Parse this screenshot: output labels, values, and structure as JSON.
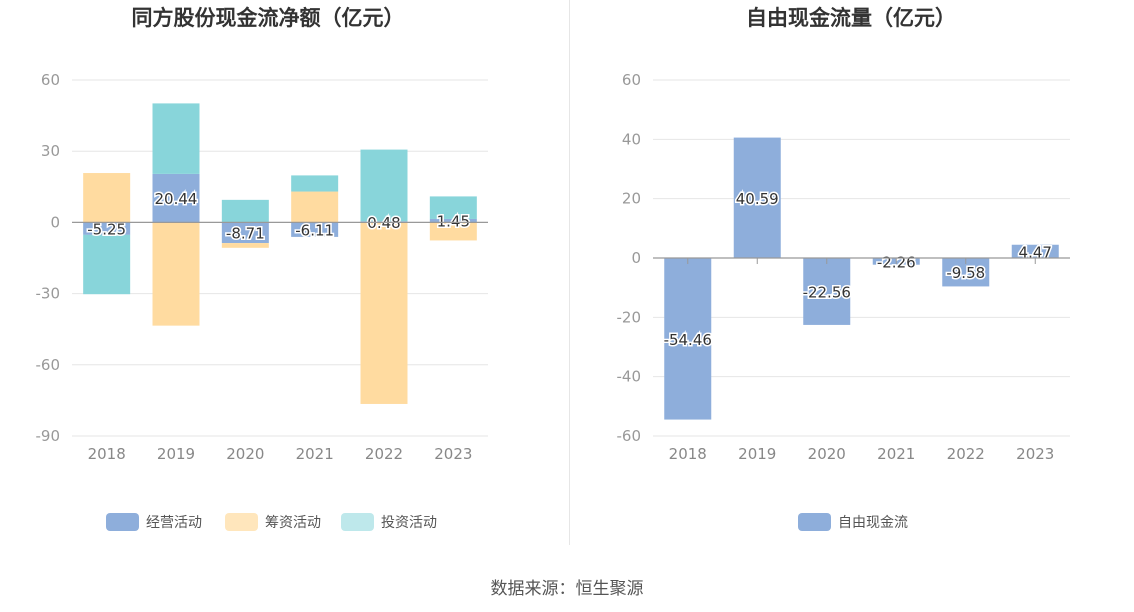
{
  "source": "数据来源：恒生聚源",
  "colors": {
    "operating": "#8eaedb",
    "financing": "#ffdba0",
    "investing": "#88d5da",
    "free": "#8eaedb",
    "grid": "#e6e6e6",
    "axis": "#999999"
  },
  "chart_data": [
    {
      "type": "bar",
      "stacked": true,
      "title": "同方股份现金流净额（亿元）",
      "categories": [
        "2018",
        "2019",
        "2020",
        "2021",
        "2022",
        "2023"
      ],
      "ylim": [
        -90,
        60
      ],
      "yticks": [
        60,
        30,
        0,
        -30,
        -60,
        -90
      ],
      "series": [
        {
          "name": "经营活动",
          "key": "operating",
          "values": [
            -5.25,
            20.44,
            -8.71,
            -6.11,
            0.48,
            1.45
          ],
          "labels": [
            "-5.25",
            "20.44",
            "-8.71",
            "-6.11",
            "0.48",
            "1.45"
          ]
        },
        {
          "name": "筹资活动",
          "key": "financing",
          "values": [
            20.8,
            -43.5,
            -2.0,
            13.0,
            -76.5,
            -7.6
          ]
        },
        {
          "name": "投资活动",
          "key": "investing",
          "values": [
            -25.0,
            29.7,
            9.5,
            6.8,
            30.2,
            9.5
          ]
        }
      ],
      "legend": "bottom"
    },
    {
      "type": "bar",
      "title": "自由现金流量（亿元）",
      "categories": [
        "2018",
        "2019",
        "2020",
        "2021",
        "2022",
        "2023"
      ],
      "ylim": [
        -60,
        60
      ],
      "yticks": [
        60,
        40,
        20,
        0,
        -20,
        -40,
        -60
      ],
      "series": [
        {
          "name": "自由现金流",
          "key": "free",
          "values": [
            -54.46,
            40.59,
            -22.56,
            -2.26,
            -9.58,
            4.47
          ],
          "labels": [
            "-54.46",
            "40.59",
            "-22.56",
            "-2.26",
            "-9.58",
            "4.47"
          ]
        }
      ],
      "legend": "bottom"
    }
  ]
}
